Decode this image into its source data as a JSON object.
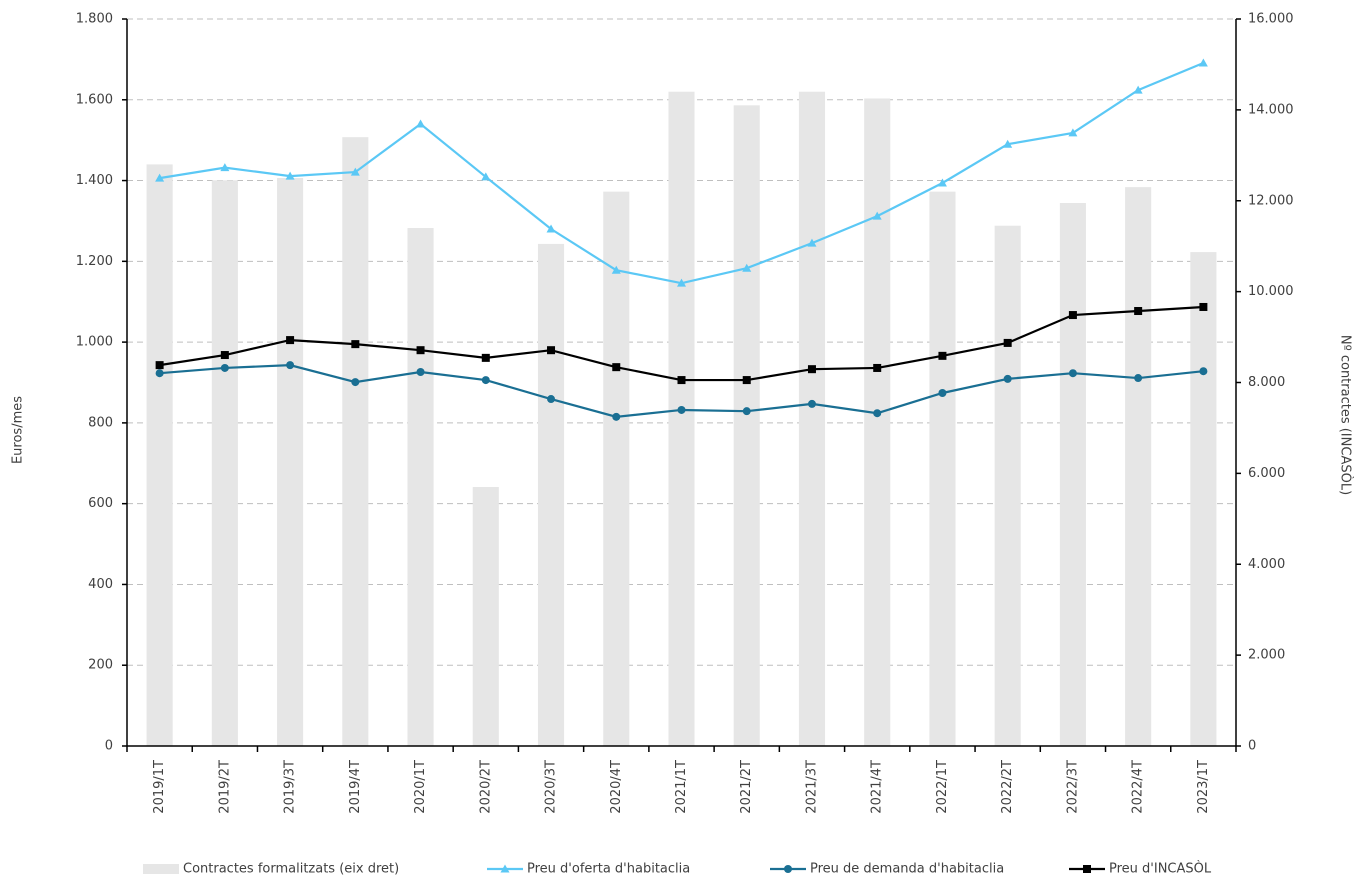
{
  "chart_data": {
    "type": "combo",
    "y_label": "Euros/mes",
    "y2_label": "Nº contractes (INCASÒL)",
    "categories": [
      "2019/1T",
      "2019/2T",
      "2019/3T",
      "2019/4T",
      "2020/1T",
      "2020/2T",
      "2020/3T",
      "2020/4T",
      "2021/1T",
      "2021/2T",
      "2021/3T",
      "2021/4T",
      "2022/1T",
      "2022/2T",
      "2022/3T",
      "2022/4T",
      "2023/1T"
    ],
    "series": [
      {
        "name": "Contractes formalitzats (eix dret)",
        "kind": "bar",
        "axis": "y2",
        "color": "#e6e6e6",
        "values": [
          12800,
          12450,
          12500,
          13400,
          11400,
          5700,
          11050,
          12200,
          14400,
          14100,
          14400,
          14250,
          12200,
          11450,
          11950,
          12300,
          10870
        ]
      },
      {
        "name": "Preu d'oferta d'habitaclia",
        "kind": "line",
        "marker": "triangle",
        "color": "#5bc8f5",
        "values": [
          1406,
          1432,
          1411,
          1421,
          1540,
          1409,
          1280,
          1178,
          1146,
          1183,
          1245,
          1312,
          1394,
          1490,
          1518,
          1624,
          1691
        ]
      },
      {
        "name": "Preu de demanda d'habitaclia",
        "kind": "line",
        "marker": "circle",
        "color": "#1a6f93",
        "values": [
          923,
          936,
          943,
          901,
          926,
          906,
          859,
          815,
          832,
          829,
          847,
          824,
          874,
          909,
          923,
          911,
          928
        ]
      },
      {
        "name": "Preu d'INCASÒL",
        "kind": "line",
        "marker": "square",
        "color": "#000000",
        "values": [
          943,
          968,
          1005,
          995,
          980,
          961,
          980,
          938,
          906,
          906,
          933,
          936,
          966,
          998,
          1067,
          1077,
          1087
        ]
      }
    ],
    "ylim": [
      0,
      1800
    ],
    "yticks": [
      0,
      200,
      400,
      600,
      800,
      {
        "value": 1000,
        "label": "1.000"
      },
      {
        "value": 1200,
        "label": "1.200"
      },
      {
        "value": 1400,
        "label": "1.400"
      },
      {
        "value": 1600,
        "label": "1.600"
      },
      {
        "value": 1800,
        "label": "1.800"
      }
    ],
    "y2lim": [
      0,
      16000
    ],
    "y2ticks": [
      0,
      {
        "value": 2000,
        "label": "2.000"
      },
      {
        "value": 4000,
        "label": "4.000"
      },
      {
        "value": 6000,
        "label": "6.000"
      },
      {
        "value": 8000,
        "label": "8.000"
      },
      {
        "value": 10000,
        "label": "10.000"
      },
      {
        "value": 12000,
        "label": "12.000"
      },
      {
        "value": 14000,
        "label": "14.000"
      },
      {
        "value": 16000,
        "label": "16.000"
      }
    ],
    "grid": true,
    "legend": "bottom"
  }
}
